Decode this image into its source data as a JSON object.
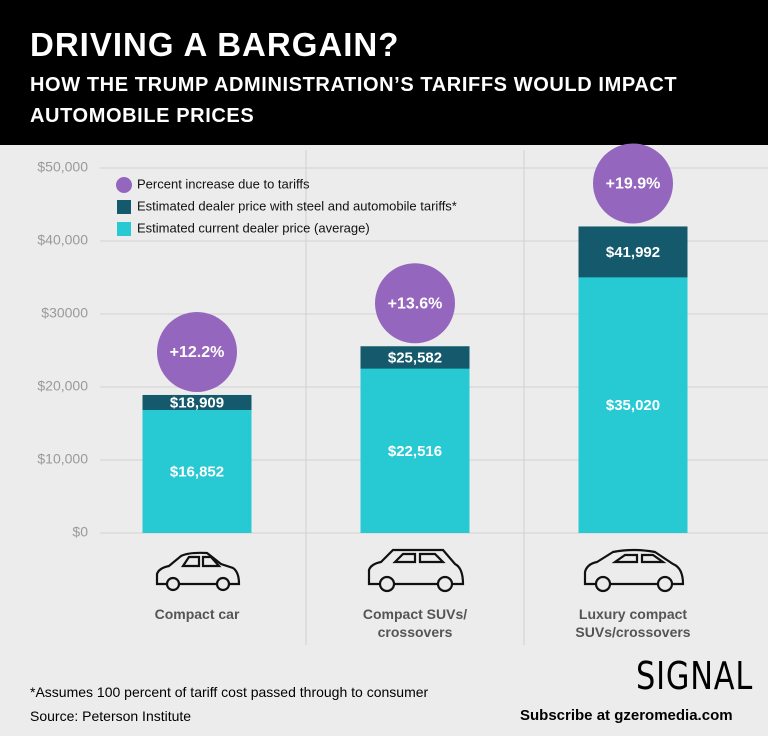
{
  "header": {
    "title": "DRIVING A BARGAIN?",
    "subtitle": "HOW THE TRUMP ADMINISTRATION’S TARIFFS WOULD IMPACT AUTOMOBILE PRICES"
  },
  "chart_data": {
    "type": "bar",
    "categories": [
      "Compact car",
      "Compact SUVs/ crossovers",
      "Luxury compact SUVs/crossovers"
    ],
    "markers": {
      "name": "Percent increase due to tariffs",
      "color": "#9566bd",
      "values": [
        12.2,
        13.6,
        19.9
      ],
      "value_labels": [
        "+12.2%",
        "+13.6%",
        "+19.9%"
      ]
    },
    "series": [
      {
        "name": "Estimated dealer price with steel and automobile tariffs*",
        "color": "#155a6c",
        "values": [
          18909,
          25582,
          41992
        ],
        "value_labels": [
          "$18,909",
          "$25,582",
          "$41,992"
        ]
      },
      {
        "name": "Estimated current dealer price (average)",
        "color": "#27c9d3",
        "values": [
          16852,
          22516,
          35020
        ],
        "value_labels": [
          "$16,852",
          "$22,516",
          "$35,020"
        ]
      }
    ],
    "ylim": [
      0,
      50000
    ],
    "yticks": [
      {
        "value": 0,
        "label": "$0"
      },
      {
        "value": 10000,
        "label": "$10,000"
      },
      {
        "value": 20000,
        "label": "$20,000"
      },
      {
        "value": 30000,
        "label": "$30000"
      },
      {
        "value": 40000,
        "label": "$40,000"
      },
      {
        "value": 50000,
        "label": "$50,000"
      }
    ],
    "grid": true,
    "legend": "upper left"
  },
  "footer": {
    "footnote": "*Assumes 100 percent of tariff cost passed through to consumer",
    "source": "Source: Peterson Institute",
    "logo": "SIGNAL",
    "subscribe": "Subscribe at gzeromedia.com"
  }
}
